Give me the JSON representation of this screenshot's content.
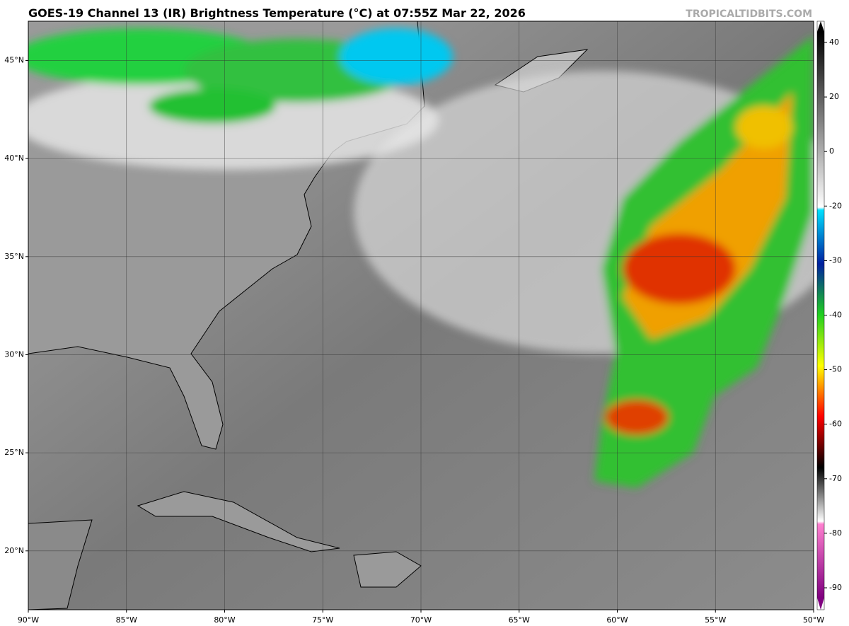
{
  "map": {
    "title": "GOES-19 Channel 13 (IR) Brightness Temperature (°C) at 07:55Z Mar 22, 2026",
    "watermark": "TROPICALTIDBITS.COM",
    "xlim": [
      -90,
      -50
    ],
    "ylim": [
      17,
      47
    ],
    "xticks": [
      {
        "value": -90,
        "label": "90°W"
      },
      {
        "value": -85,
        "label": "85°W"
      },
      {
        "value": -80,
        "label": "80°W"
      },
      {
        "value": -75,
        "label": "75°W"
      },
      {
        "value": -70,
        "label": "70°W"
      },
      {
        "value": -65,
        "label": "65°W"
      },
      {
        "value": -60,
        "label": "60°W"
      },
      {
        "value": -55,
        "label": "55°W"
      },
      {
        "value": -50,
        "label": "50°W"
      }
    ],
    "yticks": [
      {
        "value": 20,
        "label": "20°N"
      },
      {
        "value": 25,
        "label": "25°N"
      },
      {
        "value": 30,
        "label": "30°N"
      },
      {
        "value": 35,
        "label": "35°N"
      },
      {
        "value": 40,
        "label": "40°N"
      },
      {
        "value": 45,
        "label": "45°N"
      }
    ],
    "grid": true,
    "colorbar_ticks": [
      40,
      20,
      0,
      -20,
      -30,
      -40,
      -50,
      -60,
      -70,
      -80,
      -90
    ]
  }
}
